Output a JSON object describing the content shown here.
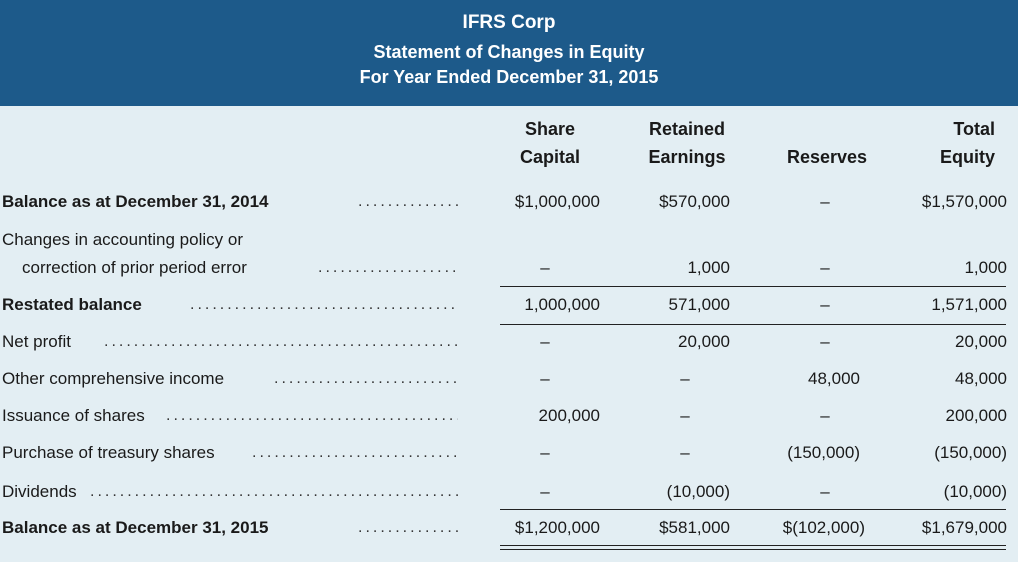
{
  "header": {
    "company": "IFRS Corp",
    "statement": "Statement of Changes in Equity",
    "period": "For Year Ended December 31, 2015"
  },
  "columns": {
    "share_capital": [
      "Share",
      "Capital"
    ],
    "retained_earnings": [
      "Retained",
      "Earnings"
    ],
    "reserves": "Reserves",
    "total_equity": [
      "Total",
      "Equity"
    ]
  },
  "rows": [
    {
      "label": "Balance as at December 31, 2014",
      "share": "$1,000,000",
      "retained": "$570,000",
      "reserves": "–",
      "total": "$1,570,000"
    },
    {
      "label": "Changes in accounting policy or",
      "label2": "correction of prior period error",
      "share": "–",
      "retained": "1,000",
      "reserves": "–",
      "total": "1,000"
    },
    {
      "label": "Restated balance",
      "share": "1,000,000",
      "retained": "571,000",
      "reserves": "–",
      "total": "1,571,000"
    },
    {
      "label": "Net profit",
      "share": "–",
      "retained": "20,000",
      "reserves": "–",
      "total": "20,000"
    },
    {
      "label": "Other comprehensive income",
      "share": "–",
      "retained": "–",
      "reserves": "48,000",
      "total": "48,000"
    },
    {
      "label": "Issuance of shares",
      "share": "200,000",
      "retained": "–",
      "reserves": "–",
      "total": "200,000"
    },
    {
      "label": "Purchase of treasury shares",
      "share": "–",
      "retained": "–",
      "reserves": "(150,000)",
      "total": "(150,000)"
    },
    {
      "label": "Dividends",
      "share": "–",
      "retained": "(10,000)",
      "reserves": "–",
      "total": "(10,000)"
    },
    {
      "label": "Balance as at December 31, 2015",
      "share": "$1,200,000",
      "retained": "$581,000",
      "reserves": "$(102,000)",
      "total": "$1,679,000"
    }
  ]
}
